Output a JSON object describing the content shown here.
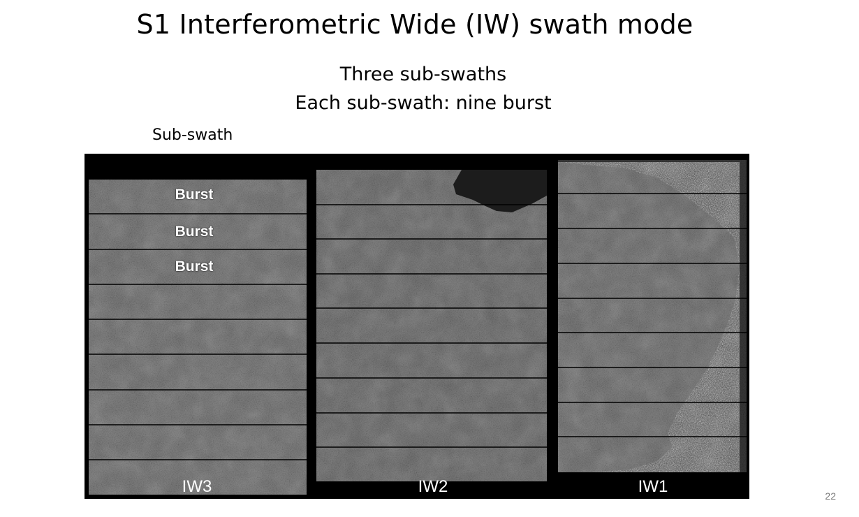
{
  "slide": {
    "title": "S1 Interferometric Wide (IW) swath mode",
    "subtitle_line1": "Three sub-swaths",
    "subtitle_line2": "Each sub-swath: nine burst",
    "subswath_label": "Sub-swath",
    "page_number": "22"
  },
  "figure": {
    "burst_labels": [
      "Burst",
      "Burst",
      "Burst"
    ],
    "swaths": [
      {
        "name": "IW3",
        "bursts": 9
      },
      {
        "name": "IW2",
        "bursts": 9
      },
      {
        "name": "IW1",
        "bursts": 9
      }
    ]
  }
}
